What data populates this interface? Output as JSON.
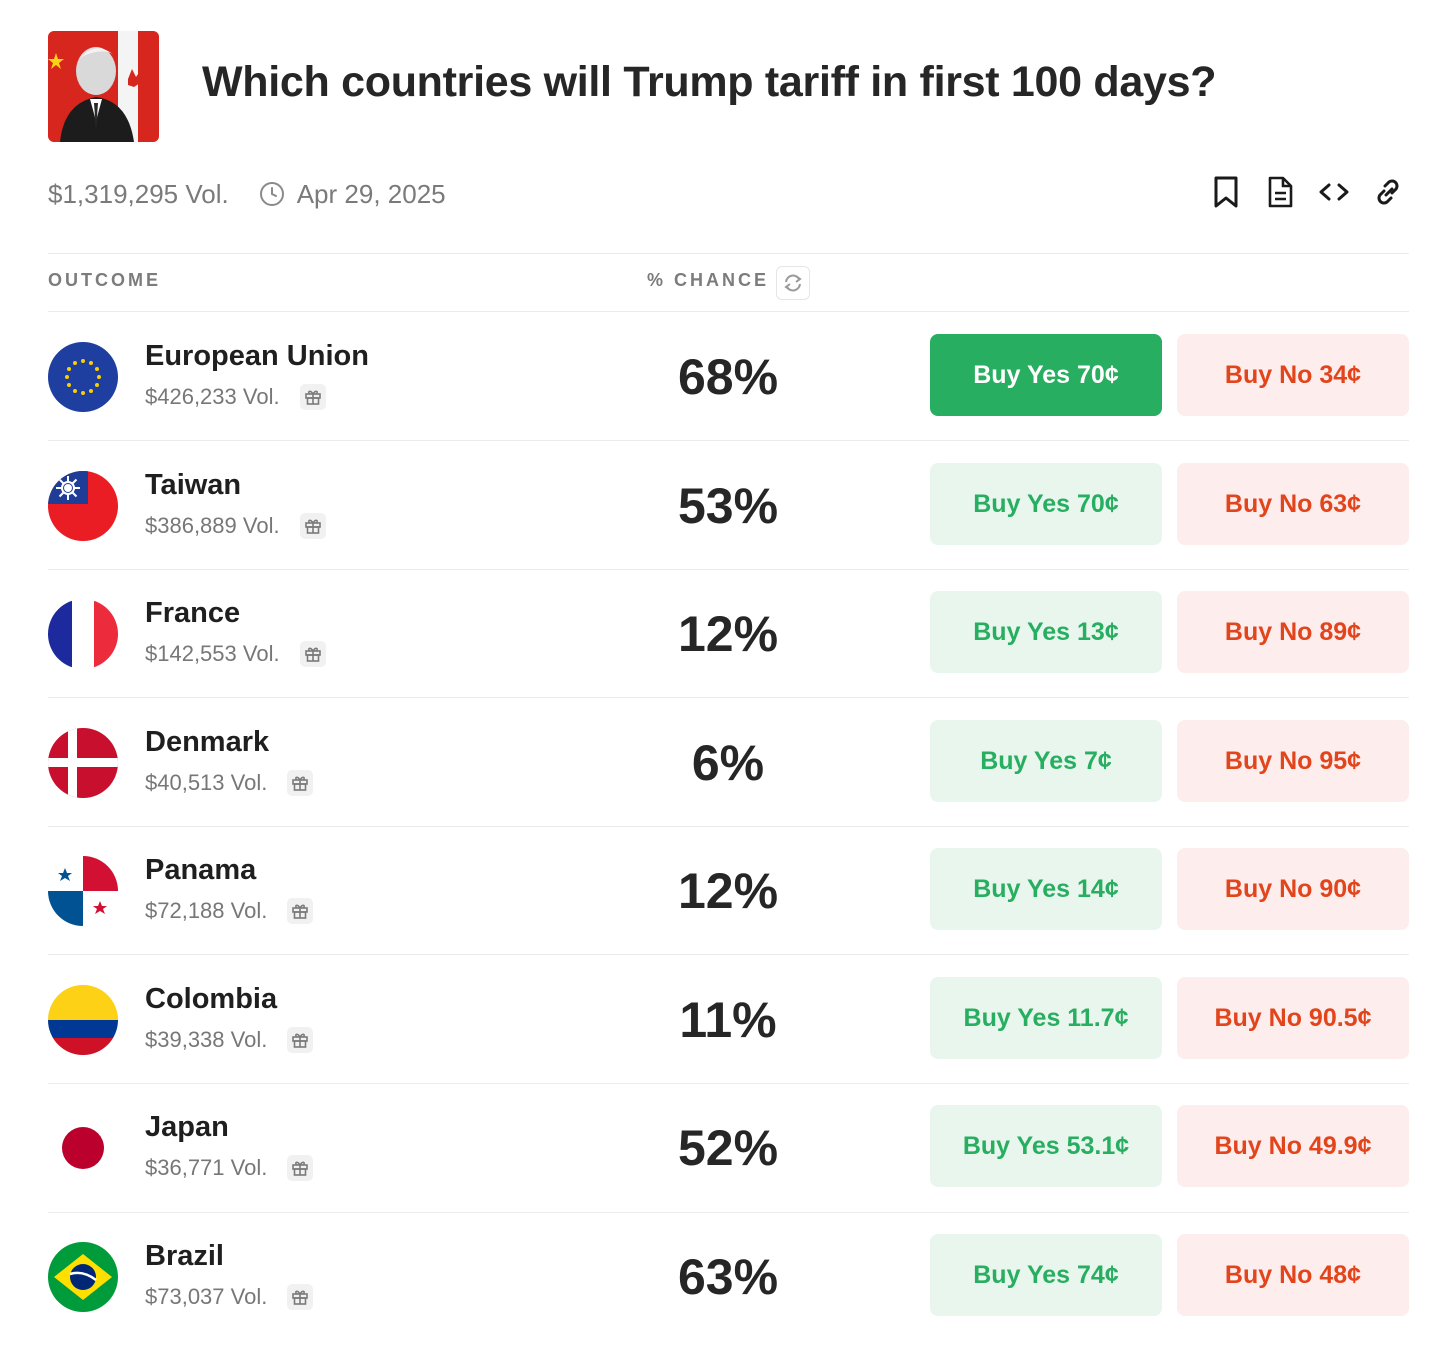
{
  "market": {
    "title": "Which countries will Trump tariff in first 100 days?",
    "volume": "$1,319,295 Vol.",
    "end_date": "Apr 29, 2025"
  },
  "header": {
    "outcome": "OUTCOME",
    "chance": "% CHANCE"
  },
  "icons": {
    "clock": "clock-icon",
    "bookmark": "bookmark-icon",
    "document": "document-icon",
    "embed": "code-icon",
    "link": "link-icon",
    "refresh": "refresh-icon",
    "gift": "gift-icon"
  },
  "colors": {
    "yes_green": "#27ae60",
    "yes_bg": "#e9f6ee",
    "no_red": "#e2451c",
    "no_bg": "#fdeded"
  },
  "outcomes": [
    {
      "name": "European Union",
      "volume": "$426,233 Vol.",
      "chance": "68%",
      "buy_yes": "Buy Yes 70¢",
      "buy_no": "Buy No 34¢"
    },
    {
      "name": "Taiwan",
      "volume": "$386,889 Vol.",
      "chance": "53%",
      "buy_yes": "Buy Yes 70¢",
      "buy_no": "Buy No 63¢"
    },
    {
      "name": "France",
      "volume": "$142,553 Vol.",
      "chance": "12%",
      "buy_yes": "Buy Yes 13¢",
      "buy_no": "Buy No 89¢"
    },
    {
      "name": "Denmark",
      "volume": "$40,513 Vol.",
      "chance": "6%",
      "buy_yes": "Buy Yes 7¢",
      "buy_no": "Buy No 95¢"
    },
    {
      "name": "Panama",
      "volume": "$72,188 Vol.",
      "chance": "12%",
      "buy_yes": "Buy Yes 14¢",
      "buy_no": "Buy No 90¢"
    },
    {
      "name": "Colombia",
      "volume": "$39,338 Vol.",
      "chance": "11%",
      "buy_yes": "Buy Yes 11.7¢",
      "buy_no": "Buy No 90.5¢"
    },
    {
      "name": "Japan",
      "volume": "$36,771 Vol.",
      "chance": "52%",
      "buy_yes": "Buy Yes 53.1¢",
      "buy_no": "Buy No 49.9¢"
    },
    {
      "name": "Brazil",
      "volume": "$73,037 Vol.",
      "chance": "63%",
      "buy_yes": "Buy Yes 74¢",
      "buy_no": "Buy No 48¢"
    }
  ]
}
